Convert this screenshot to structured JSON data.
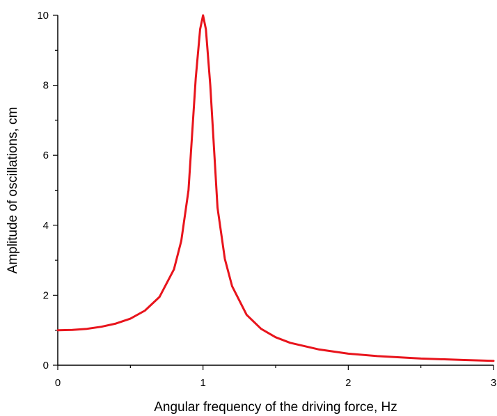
{
  "chart_data": {
    "type": "line",
    "title": "",
    "xlabel": "Angular frequency of the driving force, Hz",
    "ylabel": "Amplitude of oscillations, cm",
    "xlim": [
      0,
      3
    ],
    "ylim": [
      0,
      10
    ],
    "x_ticks": [
      "0",
      "1",
      "2",
      "3"
    ],
    "y_ticks": [
      "0",
      "2",
      "4",
      "6",
      "8",
      "10"
    ],
    "grid": false,
    "legend": "none",
    "series": [
      {
        "color": "#e8141c",
        "x": [
          0,
          0.1,
          0.2,
          0.3,
          0.4,
          0.5,
          0.6,
          0.7,
          0.8,
          0.85,
          0.9,
          0.95,
          0.98,
          1.0,
          1.02,
          1.05,
          1.1,
          1.15,
          1.2,
          1.3,
          1.4,
          1.5,
          1.6,
          1.8,
          2.0,
          2.2,
          2.5,
          2.8,
          3.0
        ],
        "y": [
          1.0,
          1.01,
          1.04,
          1.1,
          1.19,
          1.33,
          1.56,
          1.95,
          2.74,
          3.55,
          5.0,
          8.2,
          9.6,
          10.0,
          9.6,
          8.0,
          4.5,
          3.04,
          2.26,
          1.44,
          1.04,
          0.8,
          0.64,
          0.45,
          0.33,
          0.26,
          0.19,
          0.15,
          0.125
        ]
      }
    ]
  }
}
